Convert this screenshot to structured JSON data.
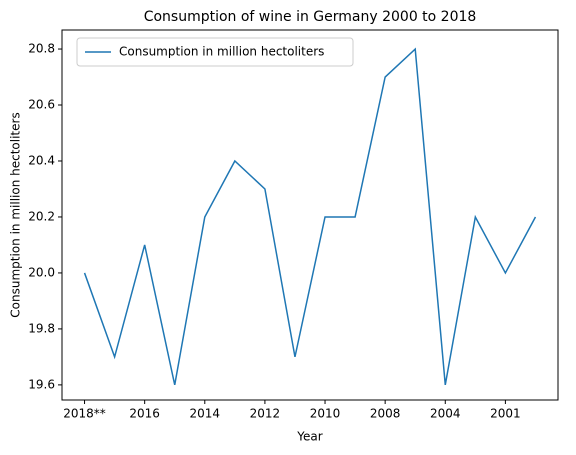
{
  "chart_data": {
    "type": "line",
    "title": "Consumption of wine in Germany 2000 to 2018",
    "x_label": "Year",
    "y_label": "Consumption in million hectoliters",
    "categories": [
      "2018**",
      null,
      "2016",
      null,
      "2014",
      null,
      "2012",
      null,
      "2010",
      null,
      "2008",
      null,
      "2004",
      null,
      "2001",
      null
    ],
    "series": [
      {
        "name": "Consumption in million hectoliters",
        "color": "#1f77b4",
        "values": [
          20.0,
          19.7,
          20.1,
          19.6,
          20.2,
          20.4,
          20.3,
          19.7,
          20.2,
          20.2,
          20.7,
          20.8,
          19.6,
          20.2,
          20.0,
          20.2
        ]
      }
    ],
    "ylim": [
      19.546,
      20.868
    ],
    "yticks": [
      19.6,
      19.8,
      {
        "value": 20,
        "label": "20.0"
      },
      20.2,
      20.4,
      20.6,
      20.8
    ],
    "grid": false,
    "legend": "upper left"
  }
}
